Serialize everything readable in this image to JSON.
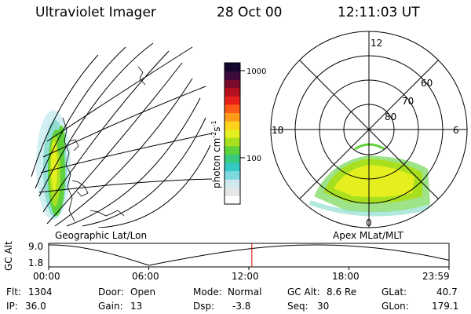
{
  "header": {
    "instrument": "Ultraviolet Imager",
    "date": "28 Oct 00",
    "time": "12:11:03 UT"
  },
  "colorbar": {
    "label": "photon cm",
    "exp1": "-2",
    "mid": "s",
    "exp2": "-1",
    "tick_high": "1000",
    "tick_low": "100",
    "colors": [
      "#ffffff",
      "#e6e6e6",
      "#cfe9ef",
      "#7fd8e0",
      "#34c9c4",
      "#39c97f",
      "#5fd13a",
      "#a8e020",
      "#e5ee1f",
      "#ffd21d",
      "#ff9b1a",
      "#ff5a18",
      "#e8201a",
      "#b4101d",
      "#7a0b2a",
      "#3d0a3d",
      "#14062e"
    ]
  },
  "geo_panel": {
    "label": "Geographic Lat/Lon"
  },
  "polar_panel": {
    "label": "Apex MLat/MLT",
    "mlt_top": "12",
    "mlt_left": "18",
    "mlt_right": "6",
    "mlt_bottom": "0",
    "lat_60": "60",
    "lat_70": "70",
    "lat_80": "80"
  },
  "altitude_plot": {
    "ylabel": "GC Alt",
    "ytick_high": "9.0",
    "ytick_low": "1.8",
    "xticks": [
      "00:00",
      "06:00",
      "12:00",
      "18:00",
      "23:59"
    ],
    "current_time_hours": 12.18
  },
  "info": {
    "flt_label": "Flt:",
    "flt_value": "1304",
    "ip_label": "IP:",
    "ip_value": "36.0",
    "door_label": "Door:",
    "door_value": "Open",
    "gain_label": "Gain:",
    "gain_value": "13",
    "mode_label": "Mode:",
    "mode_value": "Normal",
    "dsp_label": "Dsp:",
    "dsp_value": "-3.8",
    "gcalt_label": "GC Alt:",
    "gcalt_value": "8.6 Re",
    "seq_label": "Seq:",
    "seq_value": "30",
    "glat_label": "GLat:",
    "glat_value": "40.7",
    "glon_label": "GLon:",
    "glon_value": "179.1"
  }
}
